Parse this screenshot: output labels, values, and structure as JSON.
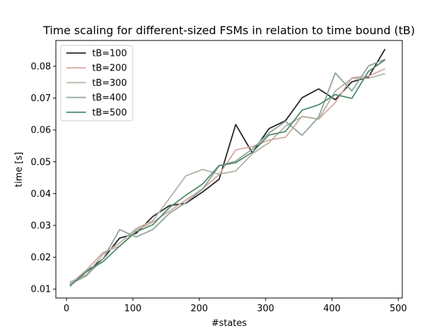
{
  "chart_data": {
    "type": "line",
    "title": "Time scaling for different-sized FSMs in relation to time bound (tB)",
    "xlabel": "#states",
    "ylabel": "time [s]",
    "xlim": [
      -16,
      506
    ],
    "ylim": [
      0.0072,
      0.0881
    ],
    "xticks": [
      0,
      100,
      200,
      300,
      400,
      500
    ],
    "yticks": [
      0.01,
      0.02,
      0.03,
      0.04,
      0.05,
      0.06,
      0.07,
      0.08
    ],
    "xtick_labels": [
      "0",
      "100",
      "200",
      "300",
      "400",
      "500"
    ],
    "ytick_labels": [
      "0.01",
      "0.02",
      "0.03",
      "0.04",
      "0.05",
      "0.06",
      "0.07",
      "0.08"
    ],
    "grid": false,
    "legend_position": "upper-left",
    "x": [
      5,
      30,
      55,
      80,
      105,
      130,
      155,
      180,
      205,
      230,
      255,
      280,
      305,
      330,
      355,
      380,
      405,
      430,
      455,
      480
    ],
    "series": [
      {
        "name": "tB=100",
        "color": "#262626",
        "values": [
          0.0115,
          0.0155,
          0.0195,
          0.026,
          0.0275,
          0.0328,
          0.0362,
          0.037,
          0.0405,
          0.0445,
          0.0617,
          0.0528,
          0.0604,
          0.0629,
          0.0701,
          0.0729,
          0.0695,
          0.0751,
          0.0766,
          0.0854
        ]
      },
      {
        "name": "tB=200",
        "color": "#d4aa9e",
        "values": [
          0.0115,
          0.016,
          0.0215,
          0.0235,
          0.0285,
          0.031,
          0.0345,
          0.038,
          0.0415,
          0.046,
          0.0537,
          0.0548,
          0.0568,
          0.0577,
          0.0643,
          0.0634,
          0.0686,
          0.0764,
          0.0769,
          0.0792
        ]
      },
      {
        "name": "tB=300",
        "color": "#b4b2a4",
        "values": [
          0.0122,
          0.0145,
          0.021,
          0.0245,
          0.029,
          0.0315,
          0.0385,
          0.0456,
          0.0476,
          0.0461,
          0.0471,
          0.0525,
          0.056,
          0.0612,
          0.0642,
          0.0634,
          0.0722,
          0.0762,
          0.0762,
          0.0777
        ]
      },
      {
        "name": "tB=400",
        "color": "#8fa49a",
        "values": [
          0.0115,
          0.0142,
          0.0195,
          0.0287,
          0.0264,
          0.0287,
          0.0338,
          0.0372,
          0.0414,
          0.0487,
          0.0502,
          0.054,
          0.059,
          0.0627,
          0.0583,
          0.0641,
          0.0779,
          0.0722,
          0.0801,
          0.0822
        ]
      },
      {
        "name": "tB=500",
        "color": "#4e8a72",
        "values": [
          0.0109,
          0.0155,
          0.0186,
          0.0235,
          0.028,
          0.0302,
          0.0356,
          0.0395,
          0.043,
          0.0488,
          0.0497,
          0.053,
          0.0584,
          0.0595,
          0.0662,
          0.0679,
          0.0711,
          0.0699,
          0.0784,
          0.082
        ]
      }
    ]
  }
}
